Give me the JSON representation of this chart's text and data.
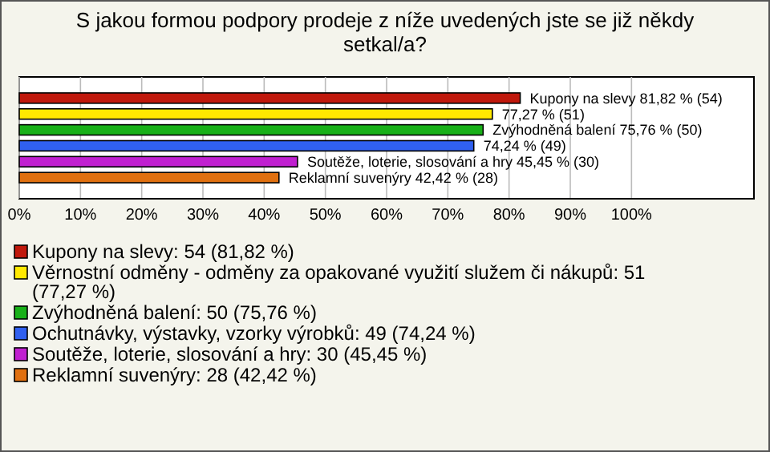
{
  "chart_data": {
    "type": "bar",
    "orientation": "horizontal",
    "title": "S jakou formou podpory prodeje z níže uvedených jste se již někdy setkal/a?",
    "categories": [
      null
    ],
    "series": [
      {
        "name": "Kupony na slevy: 54 (81,82 %)",
        "color": "#c0180c",
        "values": [
          81.82
        ],
        "value_labels": [
          "Kupony na slevy 81,82 % (54)"
        ]
      },
      {
        "name": "Věrnostní odměny - odměny za opakované využití služem či nákupů: 51 (77,27 %)",
        "color": "#ffe800",
        "values": [
          77.27
        ],
        "value_labels": [
          "77,27 % (51)"
        ]
      },
      {
        "name": "Zvýhodněná balení: 50 (75,76 %)",
        "color": "#18b018",
        "values": [
          75.76
        ],
        "value_labels": [
          "Zvýhodněná balení 75,76 % (50)"
        ]
      },
      {
        "name": "Ochutnávky, výstavky, vzorky výrobků: 49 (74,24 %)",
        "color": "#3060f0",
        "values": [
          74.24
        ],
        "value_labels": [
          "74,24 % (49)"
        ]
      },
      {
        "name": "Soutěže, loterie, slosování a hry: 30 (45,45 %)",
        "color": "#c020d0",
        "values": [
          45.45
        ],
        "value_labels": [
          "Soutěže, loterie, slosování a hry 45,45 % (30)"
        ]
      },
      {
        "name": "Reklamní suvenýry: 28 (42,42 %)",
        "color": "#e07010",
        "values": [
          42.42
        ],
        "value_labels": [
          "Reklamní suvenýry 42,42 % (28)"
        ]
      }
    ],
    "xlim": [
      0,
      120
    ],
    "xticks": [
      {
        "value": 0,
        "label": "0%"
      },
      {
        "value": 10,
        "label": "10%"
      },
      {
        "value": 20,
        "label": "20%"
      },
      {
        "value": 30,
        "label": "30%"
      },
      {
        "value": 40,
        "label": "40%"
      },
      {
        "value": 50,
        "label": "50%"
      },
      {
        "value": 60,
        "label": "60%"
      },
      {
        "value": 70,
        "label": "70%"
      },
      {
        "value": 80,
        "label": "80%"
      },
      {
        "value": 90,
        "label": "90%"
      },
      {
        "value": 100,
        "label": "100%"
      }
    ],
    "grid": "x",
    "legend": "bottom",
    "tick_labels": "x"
  }
}
